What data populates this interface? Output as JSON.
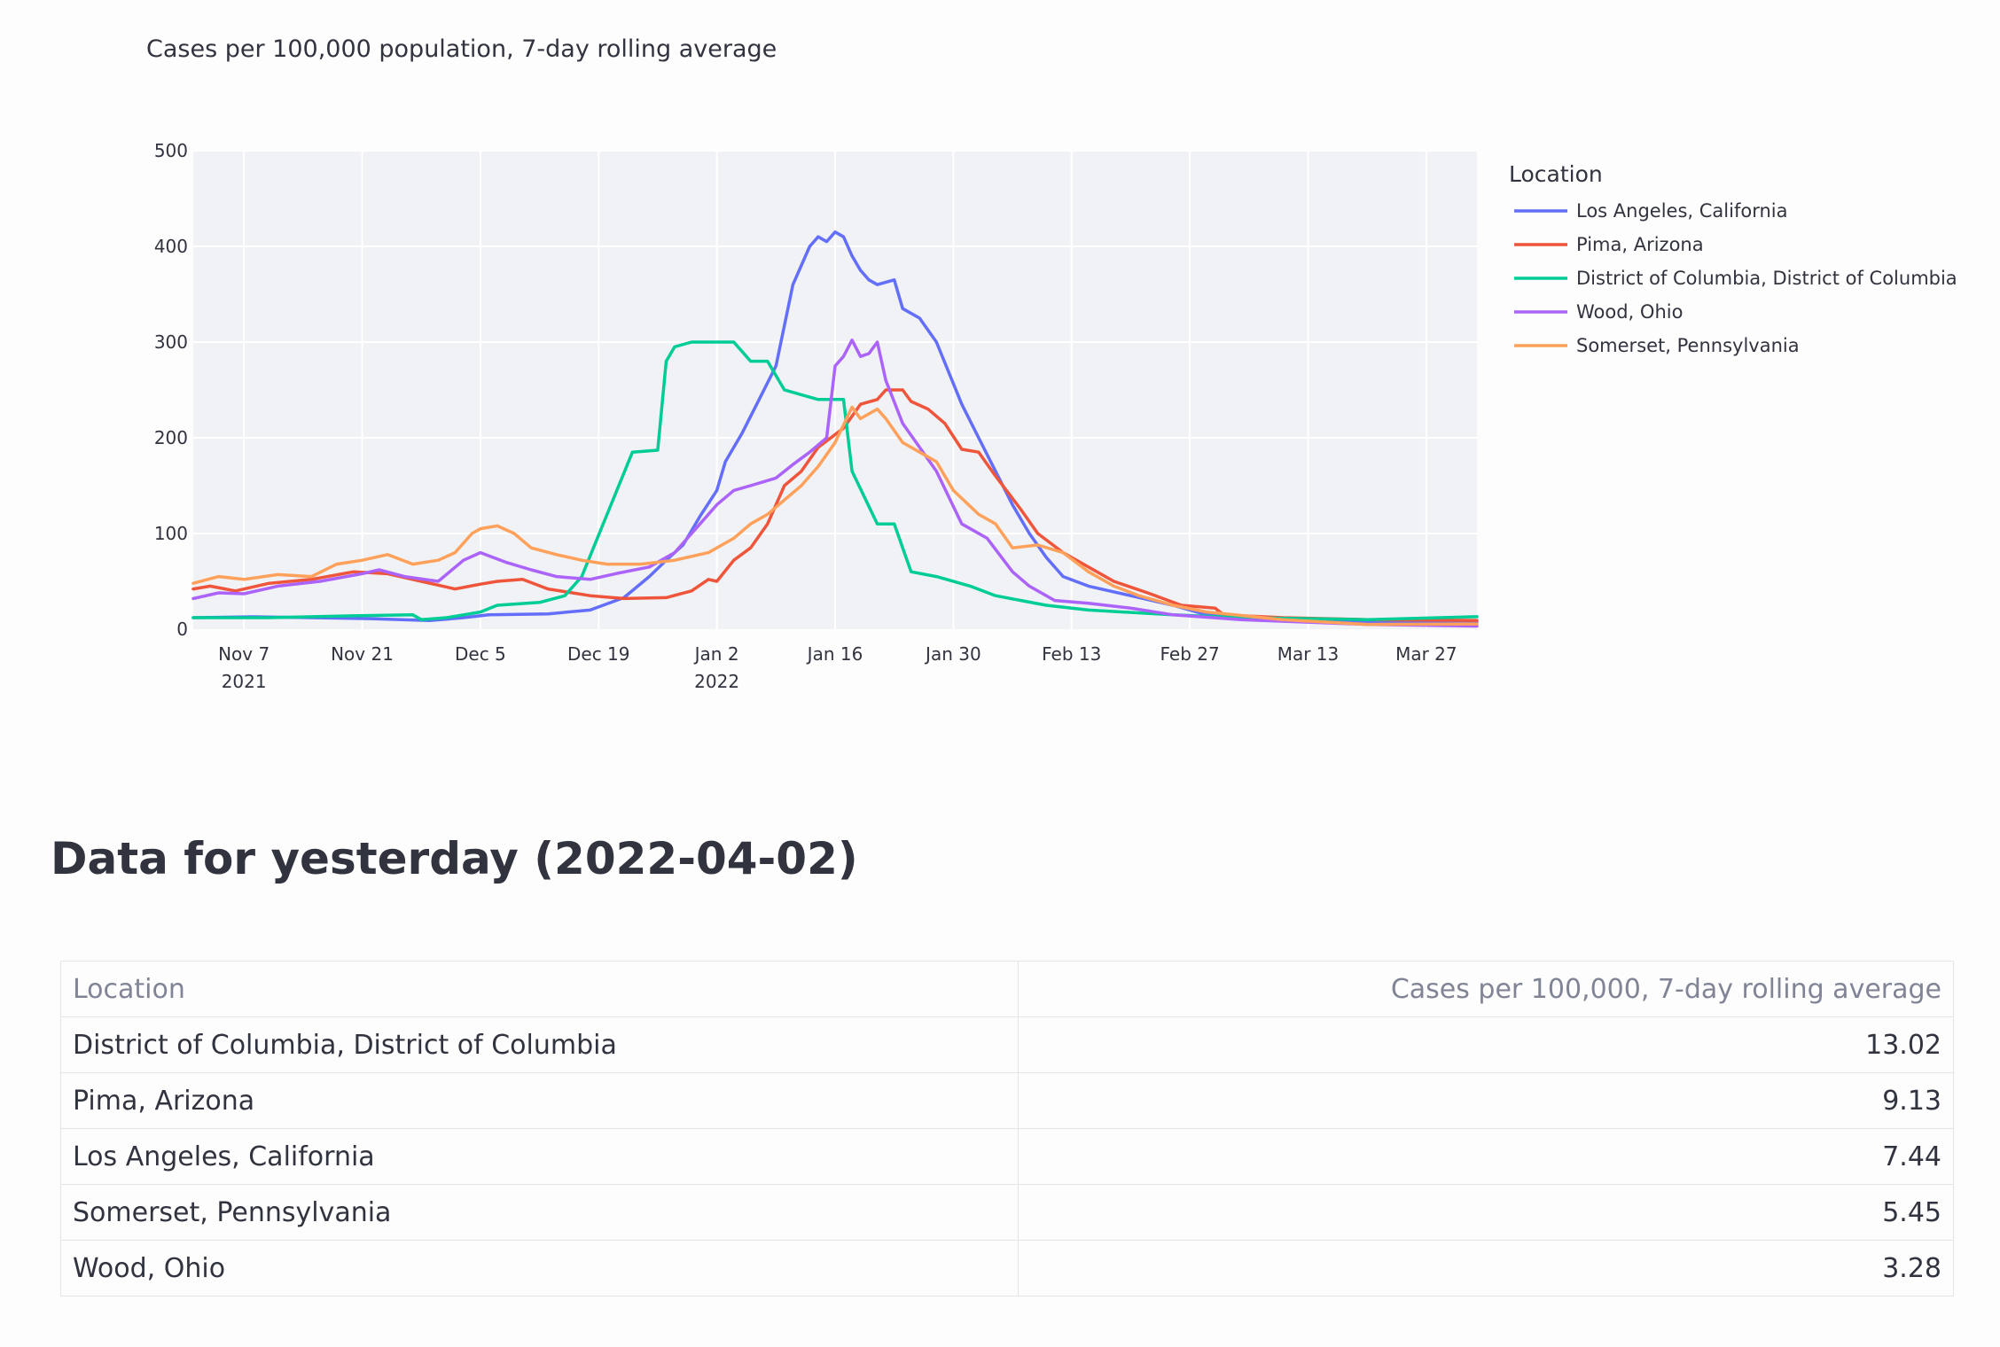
{
  "title": "Cases per 100,000 population, 7-day rolling average",
  "heading": "Data for yesterday (2022-04-02)",
  "table": {
    "headers": [
      "Location",
      "Cases per 100,000, 7-day rolling average"
    ],
    "rows": [
      [
        "District of Columbia, District of Columbia",
        "13.02"
      ],
      [
        "Pima, Arizona",
        "9.13"
      ],
      [
        "Los Angeles, California",
        "7.44"
      ],
      [
        "Somerset, Pennsylvania",
        "5.45"
      ],
      [
        "Wood, Ohio",
        "3.28"
      ]
    ]
  },
  "chart_data": {
    "type": "line",
    "title": "Cases per 100,000 population, 7-day rolling average",
    "xlabel": "",
    "ylabel": "",
    "xlim": [
      "2021-11-01",
      "2022-04-02"
    ],
    "ylim": [
      0,
      500
    ],
    "grid": true,
    "legend_title": "Location",
    "legend_position": "right",
    "x_ticks": [
      {
        "date": "2021-11-07",
        "label": "Nov 7",
        "sub": "2021"
      },
      {
        "date": "2021-11-21",
        "label": "Nov 21",
        "sub": ""
      },
      {
        "date": "2021-12-05",
        "label": "Dec 5",
        "sub": ""
      },
      {
        "date": "2021-12-19",
        "label": "Dec 19",
        "sub": ""
      },
      {
        "date": "2022-01-02",
        "label": "Jan 2",
        "sub": "2022"
      },
      {
        "date": "2022-01-16",
        "label": "Jan 16",
        "sub": ""
      },
      {
        "date": "2022-01-30",
        "label": "Jan 30",
        "sub": ""
      },
      {
        "date": "2022-02-13",
        "label": "Feb 13",
        "sub": ""
      },
      {
        "date": "2022-02-27",
        "label": "Feb 27",
        "sub": ""
      },
      {
        "date": "2022-03-13",
        "label": "Mar 13",
        "sub": ""
      },
      {
        "date": "2022-03-27",
        "label": "Mar 27",
        "sub": ""
      }
    ],
    "y_ticks": [
      0,
      100,
      200,
      300,
      400,
      500
    ],
    "series": [
      {
        "name": "Los Angeles, California",
        "color": "#636efa",
        "points": [
          [
            "2021-11-01",
            12
          ],
          [
            "2021-11-08",
            13
          ],
          [
            "2021-11-15",
            12
          ],
          [
            "2021-11-22",
            11
          ],
          [
            "2021-11-29",
            9
          ],
          [
            "2021-12-03",
            12
          ],
          [
            "2021-12-06",
            15
          ],
          [
            "2021-12-13",
            16
          ],
          [
            "2021-12-18",
            20
          ],
          [
            "2021-12-22",
            33
          ],
          [
            "2021-12-25",
            55
          ],
          [
            "2021-12-27",
            72
          ],
          [
            "2021-12-29",
            88
          ],
          [
            "2021-12-31",
            118
          ],
          [
            "2022-01-02",
            145
          ],
          [
            "2022-01-03",
            175
          ],
          [
            "2022-01-05",
            205
          ],
          [
            "2022-01-07",
            240
          ],
          [
            "2022-01-09",
            275
          ],
          [
            "2022-01-11",
            360
          ],
          [
            "2022-01-13",
            400
          ],
          [
            "2022-01-14",
            410
          ],
          [
            "2022-01-15",
            405
          ],
          [
            "2022-01-16",
            415
          ],
          [
            "2022-01-17",
            410
          ],
          [
            "2022-01-18",
            390
          ],
          [
            "2022-01-19",
            375
          ],
          [
            "2022-01-20",
            365
          ],
          [
            "2022-01-21",
            360
          ],
          [
            "2022-01-23",
            365
          ],
          [
            "2022-01-24",
            335
          ],
          [
            "2022-01-26",
            325
          ],
          [
            "2022-01-28",
            300
          ],
          [
            "2022-01-31",
            235
          ],
          [
            "2022-02-02",
            200
          ],
          [
            "2022-02-04",
            165
          ],
          [
            "2022-02-06",
            130
          ],
          [
            "2022-02-08",
            100
          ],
          [
            "2022-02-10",
            75
          ],
          [
            "2022-02-12",
            55
          ],
          [
            "2022-02-15",
            45
          ],
          [
            "2022-02-20",
            35
          ],
          [
            "2022-02-25",
            25
          ],
          [
            "2022-03-01",
            15
          ],
          [
            "2022-03-10",
            10
          ],
          [
            "2022-03-20",
            8
          ],
          [
            "2022-04-02",
            7.44
          ]
        ]
      },
      {
        "name": "Pima, Arizona",
        "color": "#ef553b",
        "points": [
          [
            "2021-11-01",
            42
          ],
          [
            "2021-11-03",
            45
          ],
          [
            "2021-11-06",
            40
          ],
          [
            "2021-11-10",
            48
          ],
          [
            "2021-11-15",
            52
          ],
          [
            "2021-11-20",
            60
          ],
          [
            "2021-11-24",
            58
          ],
          [
            "2021-11-28",
            50
          ],
          [
            "2021-12-02",
            42
          ],
          [
            "2021-12-05",
            47
          ],
          [
            "2021-12-07",
            50
          ],
          [
            "2021-12-10",
            52
          ],
          [
            "2021-12-13",
            42
          ],
          [
            "2021-12-18",
            35
          ],
          [
            "2021-12-22",
            32
          ],
          [
            "2021-12-27",
            33
          ],
          [
            "2021-12-30",
            40
          ],
          [
            "2022-01-01",
            52
          ],
          [
            "2022-01-02",
            50
          ],
          [
            "2022-01-04",
            72
          ],
          [
            "2022-01-06",
            85
          ],
          [
            "2022-01-08",
            110
          ],
          [
            "2022-01-10",
            150
          ],
          [
            "2022-01-12",
            165
          ],
          [
            "2022-01-14",
            190
          ],
          [
            "2022-01-17",
            210
          ],
          [
            "2022-01-19",
            235
          ],
          [
            "2022-01-21",
            240
          ],
          [
            "2022-01-22",
            250
          ],
          [
            "2022-01-24",
            250
          ],
          [
            "2022-01-25",
            238
          ],
          [
            "2022-01-27",
            230
          ],
          [
            "2022-01-29",
            215
          ],
          [
            "2022-01-31",
            188
          ],
          [
            "2022-02-02",
            185
          ],
          [
            "2022-02-04",
            160
          ],
          [
            "2022-02-07",
            125
          ],
          [
            "2022-02-09",
            100
          ],
          [
            "2022-02-12",
            80
          ],
          [
            "2022-02-15",
            65
          ],
          [
            "2022-02-18",
            50
          ],
          [
            "2022-02-22",
            38
          ],
          [
            "2022-02-26",
            25
          ],
          [
            "2022-03-02",
            22
          ],
          [
            "2022-03-03",
            15
          ],
          [
            "2022-03-10",
            12
          ],
          [
            "2022-03-20",
            10
          ],
          [
            "2022-04-02",
            9.13
          ]
        ]
      },
      {
        "name": "District of Columbia, District of Columbia",
        "color": "#00cc96",
        "points": [
          [
            "2021-11-01",
            12
          ],
          [
            "2021-11-10",
            12
          ],
          [
            "2021-11-20",
            14
          ],
          [
            "2021-11-27",
            15
          ],
          [
            "2021-11-28",
            10
          ],
          [
            "2021-12-01",
            12
          ],
          [
            "2021-12-03",
            15
          ],
          [
            "2021-12-05",
            18
          ],
          [
            "2021-12-07",
            25
          ],
          [
            "2021-12-12",
            28
          ],
          [
            "2021-12-15",
            35
          ],
          [
            "2021-12-17",
            55
          ],
          [
            "2021-12-20",
            120
          ],
          [
            "2021-12-23",
            185
          ],
          [
            "2021-12-26",
            187
          ],
          [
            "2021-12-27",
            280
          ],
          [
            "2021-12-28",
            295
          ],
          [
            "2021-12-30",
            300
          ],
          [
            "2022-01-04",
            300
          ],
          [
            "2022-01-06",
            280
          ],
          [
            "2022-01-08",
            280
          ],
          [
            "2022-01-10",
            250
          ],
          [
            "2022-01-12",
            245
          ],
          [
            "2022-01-14",
            240
          ],
          [
            "2022-01-17",
            240
          ],
          [
            "2022-01-18",
            165
          ],
          [
            "2022-01-21",
            110
          ],
          [
            "2022-01-23",
            110
          ],
          [
            "2022-01-25",
            60
          ],
          [
            "2022-01-28",
            55
          ],
          [
            "2022-02-01",
            45
          ],
          [
            "2022-02-04",
            35
          ],
          [
            "2022-02-07",
            30
          ],
          [
            "2022-02-10",
            25
          ],
          [
            "2022-02-15",
            20
          ],
          [
            "2022-02-25",
            15
          ],
          [
            "2022-03-05",
            12
          ],
          [
            "2022-03-20",
            10
          ],
          [
            "2022-04-02",
            13.02
          ]
        ]
      },
      {
        "name": "Wood, Ohio",
        "color": "#ab63fa",
        "points": [
          [
            "2021-11-01",
            32
          ],
          [
            "2021-11-04",
            38
          ],
          [
            "2021-11-07",
            37
          ],
          [
            "2021-11-11",
            45
          ],
          [
            "2021-11-16",
            50
          ],
          [
            "2021-11-21",
            58
          ],
          [
            "2021-11-23",
            62
          ],
          [
            "2021-11-26",
            55
          ],
          [
            "2021-11-30",
            50
          ],
          [
            "2021-12-03",
            72
          ],
          [
            "2021-12-05",
            80
          ],
          [
            "2021-12-08",
            70
          ],
          [
            "2021-12-11",
            62
          ],
          [
            "2021-12-14",
            55
          ],
          [
            "2021-12-18",
            52
          ],
          [
            "2021-12-21",
            58
          ],
          [
            "2021-12-25",
            65
          ],
          [
            "2021-12-28",
            80
          ],
          [
            "2021-12-31",
            110
          ],
          [
            "2022-01-02",
            130
          ],
          [
            "2022-01-04",
            145
          ],
          [
            "2022-01-06",
            150
          ],
          [
            "2022-01-09",
            158
          ],
          [
            "2022-01-11",
            172
          ],
          [
            "2022-01-13",
            185
          ],
          [
            "2022-01-15",
            200
          ],
          [
            "2022-01-16",
            275
          ],
          [
            "2022-01-17",
            285
          ],
          [
            "2022-01-18",
            302
          ],
          [
            "2022-01-19",
            285
          ],
          [
            "2022-01-20",
            288
          ],
          [
            "2022-01-21",
            300
          ],
          [
            "2022-01-22",
            260
          ],
          [
            "2022-01-24",
            215
          ],
          [
            "2022-01-26",
            190
          ],
          [
            "2022-01-28",
            165
          ],
          [
            "2022-01-31",
            110
          ],
          [
            "2022-02-03",
            95
          ],
          [
            "2022-02-06",
            60
          ],
          [
            "2022-02-08",
            45
          ],
          [
            "2022-02-11",
            30
          ],
          [
            "2022-02-15",
            27
          ],
          [
            "2022-02-20",
            22
          ],
          [
            "2022-02-25",
            15
          ],
          [
            "2022-03-05",
            10
          ],
          [
            "2022-03-20",
            5
          ],
          [
            "2022-04-02",
            3.28
          ]
        ]
      },
      {
        "name": "Somerset, Pennsylvania",
        "color": "#ffa15a",
        "points": [
          [
            "2021-11-01",
            48
          ],
          [
            "2021-11-04",
            55
          ],
          [
            "2021-11-07",
            52
          ],
          [
            "2021-11-11",
            57
          ],
          [
            "2021-11-15",
            55
          ],
          [
            "2021-11-18",
            68
          ],
          [
            "2021-11-21",
            72
          ],
          [
            "2021-11-24",
            78
          ],
          [
            "2021-11-27",
            68
          ],
          [
            "2021-11-30",
            72
          ],
          [
            "2021-12-02",
            80
          ],
          [
            "2021-12-04",
            100
          ],
          [
            "2021-12-05",
            105
          ],
          [
            "2021-12-07",
            108
          ],
          [
            "2021-12-09",
            100
          ],
          [
            "2021-12-11",
            85
          ],
          [
            "2021-12-14",
            78
          ],
          [
            "2021-12-17",
            72
          ],
          [
            "2021-12-20",
            68
          ],
          [
            "2021-12-24",
            68
          ],
          [
            "2021-12-28",
            72
          ],
          [
            "2022-01-01",
            80
          ],
          [
            "2022-01-04",
            95
          ],
          [
            "2022-01-06",
            110
          ],
          [
            "2022-01-08",
            120
          ],
          [
            "2022-01-10",
            135
          ],
          [
            "2022-01-12",
            150
          ],
          [
            "2022-01-14",
            170
          ],
          [
            "2022-01-16",
            195
          ],
          [
            "2022-01-18",
            232
          ],
          [
            "2022-01-19",
            220
          ],
          [
            "2022-01-21",
            230
          ],
          [
            "2022-01-22",
            220
          ],
          [
            "2022-01-24",
            195
          ],
          [
            "2022-01-26",
            185
          ],
          [
            "2022-01-28",
            175
          ],
          [
            "2022-01-30",
            145
          ],
          [
            "2022-02-02",
            120
          ],
          [
            "2022-02-04",
            110
          ],
          [
            "2022-02-06",
            85
          ],
          [
            "2022-02-09",
            88
          ],
          [
            "2022-02-12",
            80
          ],
          [
            "2022-02-15",
            60
          ],
          [
            "2022-02-18",
            45
          ],
          [
            "2022-02-21",
            35
          ],
          [
            "2022-02-25",
            25
          ],
          [
            "2022-03-01",
            18
          ],
          [
            "2022-03-10",
            10
          ],
          [
            "2022-03-20",
            5
          ],
          [
            "2022-04-02",
            5.45
          ]
        ]
      }
    ]
  }
}
